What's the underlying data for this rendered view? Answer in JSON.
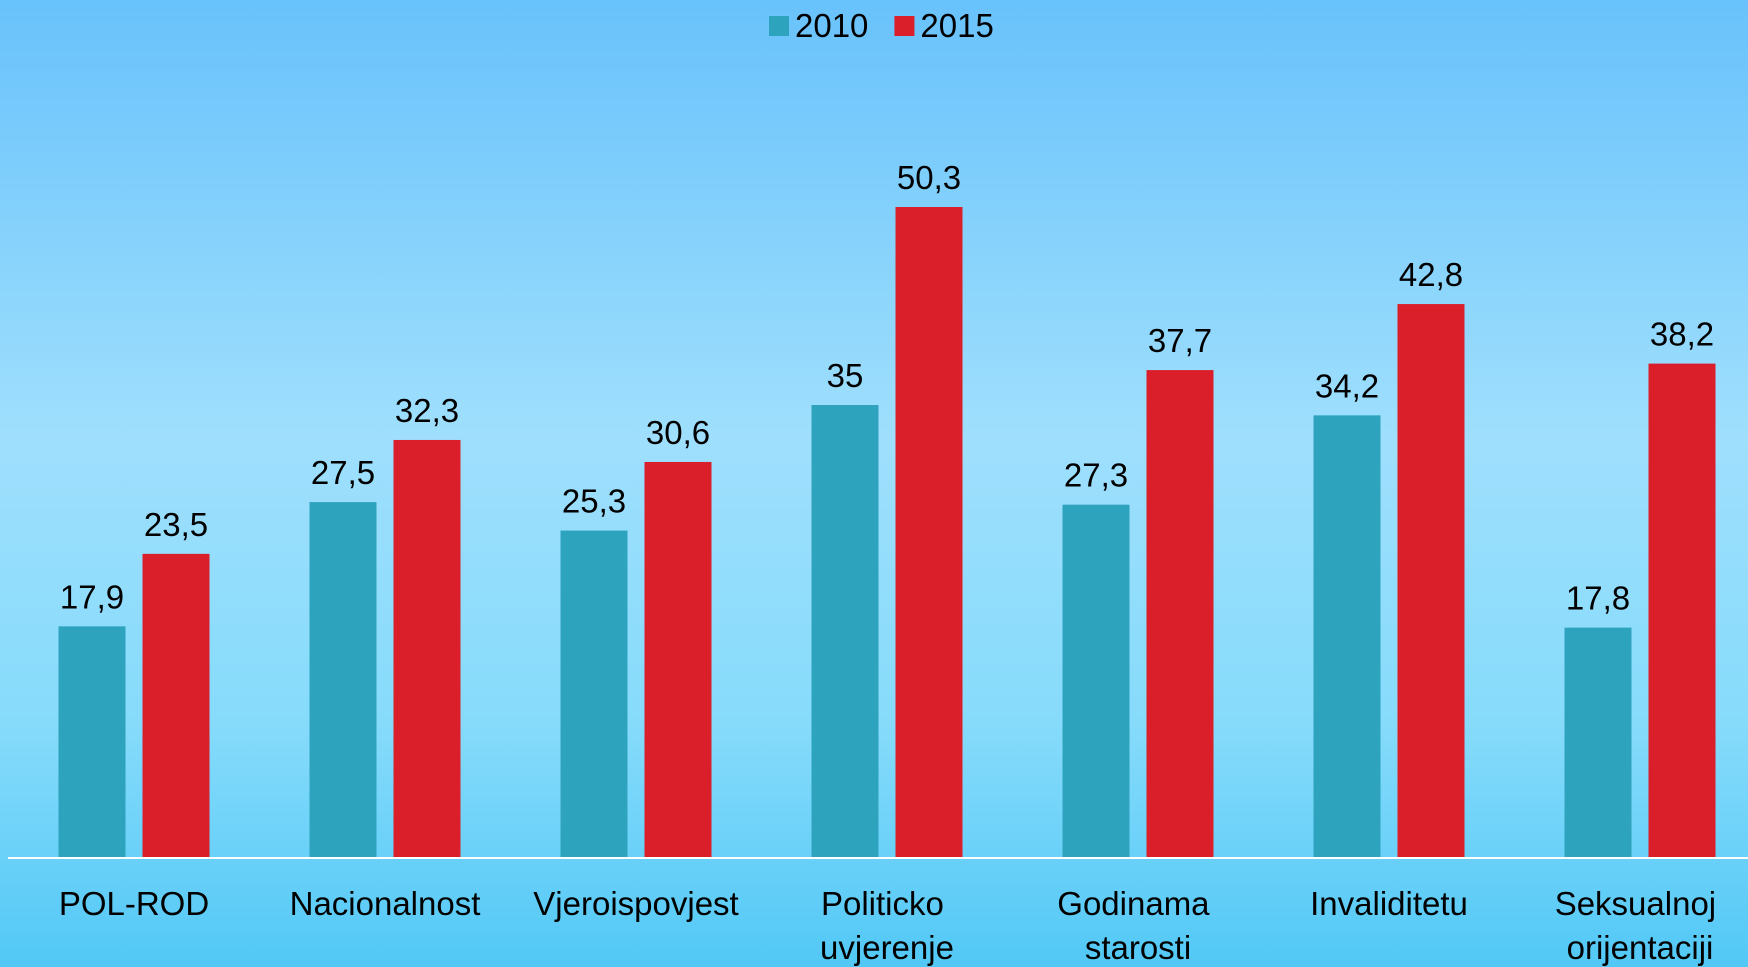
{
  "chart_data": {
    "type": "bar",
    "categories": [
      "POL-ROD",
      "Nacionalnost",
      "Vjeroispovjest",
      "Politicko uvjerenje",
      "Godinama starosti",
      "Invaliditetu",
      "Seksualnoj orijentaciji"
    ],
    "series": [
      {
        "name": "2010",
        "color": "#2ea3be",
        "values": [
          17.9,
          27.5,
          25.3,
          35,
          27.3,
          34.2,
          17.8
        ],
        "value_labels": [
          "17,9",
          "27,5",
          "25,3",
          "35",
          "27,3",
          "34,2",
          "17,8"
        ]
      },
      {
        "name": "2015",
        "color": "#da1f2a",
        "values": [
          23.5,
          32.3,
          30.6,
          50.3,
          37.7,
          42.8,
          38.2
        ],
        "value_labels": [
          "23,5",
          "32,3",
          "30,6",
          "50,3",
          "37,7",
          "42,8",
          "38,2"
        ]
      }
    ],
    "legend": "top"
  }
}
